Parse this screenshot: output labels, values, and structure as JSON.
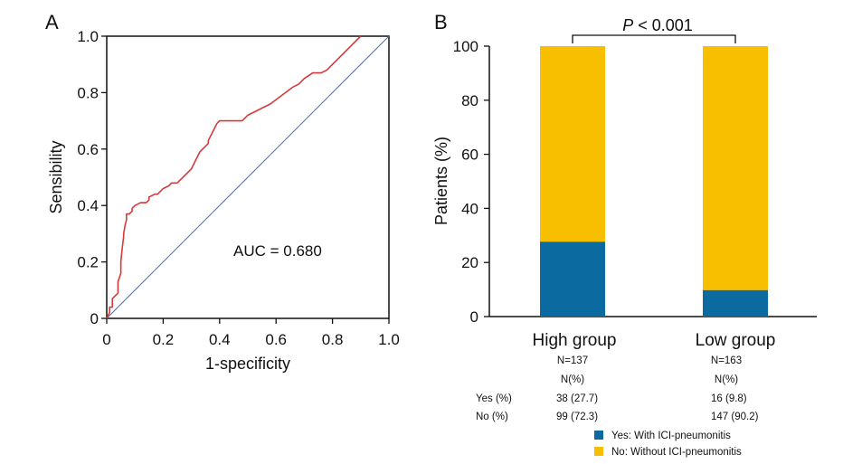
{
  "chart_data": [
    {
      "panel_label": "A",
      "type": "line",
      "title": "",
      "xlabel": "1-specificity",
      "ylabel": "Sensibility",
      "xlim": [
        0,
        1.0
      ],
      "ylim": [
        0,
        1.0
      ],
      "x_ticks": [
        0,
        0.2,
        0.4,
        0.6,
        0.8,
        1.0
      ],
      "x_tick_labels": [
        "0",
        "0.2",
        "0.4",
        "0.6",
        "0.8",
        "1.0"
      ],
      "y_ticks": [
        0,
        0.2,
        0.4,
        0.6,
        0.8,
        1.0
      ],
      "y_tick_labels": [
        "0",
        "0.2",
        "0.4",
        "0.6",
        "0.8",
        "1.0"
      ],
      "annotation": "AUC = 0.680",
      "colors": {
        "roc": "#d23b3b",
        "reference": "#4a6fc4"
      },
      "series": [
        {
          "name": "ROC curve",
          "x": [
            0,
            0.01,
            0.01,
            0.02,
            0.02,
            0.03,
            0.04,
            0.04,
            0.05,
            0.05,
            0.055,
            0.06,
            0.06,
            0.065,
            0.07,
            0.07,
            0.08,
            0.09,
            0.09,
            0.1,
            0.12,
            0.14,
            0.15,
            0.15,
            0.17,
            0.18,
            0.19,
            0.2,
            0.22,
            0.23,
            0.25,
            0.26,
            0.28,
            0.3,
            0.31,
            0.32,
            0.33,
            0.35,
            0.36,
            0.36,
            0.37,
            0.38,
            0.39,
            0.4,
            0.48,
            0.5,
            0.52,
            0.54,
            0.58,
            0.62,
            0.66,
            0.68,
            0.7,
            0.73,
            0.76,
            0.78,
            0.8,
            0.82,
            0.84,
            0.86,
            0.88,
            0.9
          ],
          "y": [
            0,
            0.02,
            0.04,
            0.04,
            0.07,
            0.08,
            0.09,
            0.13,
            0.16,
            0.2,
            0.25,
            0.29,
            0.3,
            0.33,
            0.35,
            0.37,
            0.37,
            0.38,
            0.39,
            0.4,
            0.41,
            0.41,
            0.42,
            0.43,
            0.44,
            0.44,
            0.45,
            0.46,
            0.47,
            0.48,
            0.48,
            0.49,
            0.51,
            0.53,
            0.55,
            0.57,
            0.59,
            0.61,
            0.62,
            0.63,
            0.65,
            0.67,
            0.69,
            0.7,
            0.7,
            0.72,
            0.73,
            0.74,
            0.76,
            0.79,
            0.82,
            0.83,
            0.85,
            0.87,
            0.87,
            0.88,
            0.9,
            0.92,
            0.94,
            0.96,
            0.98,
            1.0
          ]
        },
        {
          "name": "Reference line",
          "x": [
            0,
            1
          ],
          "y": [
            0,
            1
          ]
        }
      ]
    },
    {
      "panel_label": "B",
      "type": "bar",
      "stacked": true,
      "title": "",
      "xlabel": "",
      "ylabel": "Patients (%)",
      "ylim": [
        0,
        100
      ],
      "y_ticks": [
        0,
        20,
        40,
        60,
        80,
        100
      ],
      "y_tick_labels": [
        "0",
        "20",
        "40",
        "60",
        "80",
        "100"
      ],
      "categories": [
        "High group",
        "Low group"
      ],
      "series": [
        {
          "name": "Yes: With ICI-pneumonitis",
          "color": "#0b6aa0",
          "values": [
            27.7,
            9.8
          ]
        },
        {
          "name": "No: Without ICI-pneumonitis",
          "color": "#f7bf00",
          "values": [
            72.3,
            90.2
          ]
        }
      ],
      "significance": {
        "prefix": "P",
        "text": " < 0.001"
      },
      "legend_position": "bottom-center",
      "sub_table": {
        "n_labels": [
          "N=137",
          "N=163"
        ],
        "n_pct_labels": [
          "N(%)",
          "N(%)"
        ],
        "rows": [
          {
            "label": "Yes (%)",
            "values": [
              "38 (27.7)",
              "16 (9.8)"
            ]
          },
          {
            "label": "No (%)",
            "values": [
              "99 (72.3)",
              "147 (90.2)"
            ]
          }
        ]
      }
    }
  ]
}
